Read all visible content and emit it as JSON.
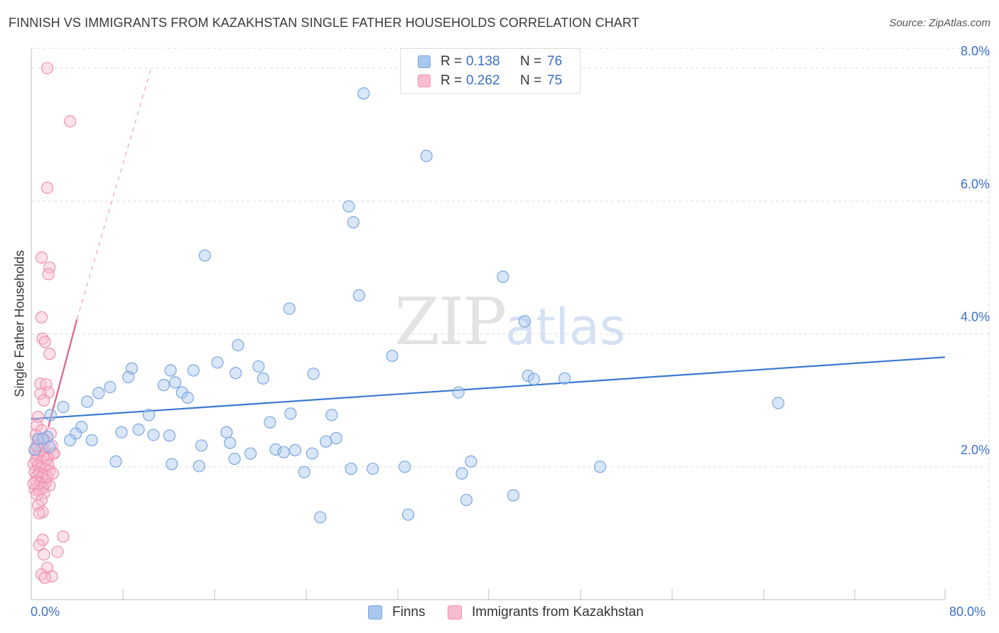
{
  "title": "FINNISH VS IMMIGRANTS FROM KAZAKHSTAN SINGLE FATHER HOUSEHOLDS CORRELATION CHART",
  "source": "Source: ZipAtlas.com",
  "watermark": {
    "zip": "ZIP",
    "atlas": "atlas"
  },
  "colors": {
    "finns_fill": "#a9c7ef",
    "finns_stroke": "#7aa6e0",
    "finns_line": "#3b78d0",
    "kaz_fill": "#f7bcd0",
    "kaz_stroke": "#ee8fb0",
    "kaz_line": "#e0608e",
    "axis_text": "#3b6fc9",
    "grid": "#dcdcdc"
  },
  "legend": {
    "rows": [
      {
        "r_label": "R =",
        "r_value": "0.138",
        "n_label": "N =",
        "n_value": "76"
      },
      {
        "r_label": "R =",
        "r_value": "0.262",
        "n_label": "N =",
        "n_value": "75"
      }
    ]
  },
  "bottom_legend": [
    "Finns",
    "Immigrants from Kazakhstan"
  ],
  "chart_data": {
    "type": "scatter",
    "title": "FINNISH VS IMMIGRANTS FROM KAZAKHSTAN SINGLE FATHER HOUSEHOLDS CORRELATION CHART",
    "xlabel": "",
    "ylabel": "Single Father Households",
    "xlim": [
      0,
      80
    ],
    "ylim": [
      0,
      8.3
    ],
    "x_tick_labels": [
      "0.0%",
      "80.0%"
    ],
    "y_ticks": [
      2.0,
      4.0,
      6.0,
      8.0
    ],
    "y_tick_labels": [
      "2.0%",
      "4.0%",
      "6.0%",
      "8.0%"
    ],
    "grid": true,
    "series": [
      {
        "name": "Finns",
        "R": 0.138,
        "N": 76,
        "trend": {
          "x": [
            0,
            80
          ],
          "y": [
            2.72,
            3.65
          ]
        },
        "points": [
          [
            29.1,
            7.62
          ],
          [
            34.6,
            6.68
          ],
          [
            27.8,
            5.92
          ],
          [
            28.2,
            5.68
          ],
          [
            15.2,
            5.18
          ],
          [
            41.3,
            4.86
          ],
          [
            28.7,
            4.58
          ],
          [
            22.6,
            4.38
          ],
          [
            43.2,
            4.19
          ],
          [
            18.1,
            3.83
          ],
          [
            31.6,
            3.67
          ],
          [
            16.3,
            3.57
          ],
          [
            19.9,
            3.51
          ],
          [
            8.8,
            3.48
          ],
          [
            12.2,
            3.45
          ],
          [
            14.2,
            3.45
          ],
          [
            17.9,
            3.41
          ],
          [
            24.7,
            3.4
          ],
          [
            8.5,
            3.35
          ],
          [
            20.3,
            3.33
          ],
          [
            43.5,
            3.37
          ],
          [
            44.0,
            3.32
          ],
          [
            46.7,
            3.33
          ],
          [
            11.6,
            3.23
          ],
          [
            6.9,
            3.2
          ],
          [
            12.6,
            3.27
          ],
          [
            13.2,
            3.12
          ],
          [
            5.9,
            3.11
          ],
          [
            13.7,
            3.04
          ],
          [
            37.4,
            3.12
          ],
          [
            4.9,
            2.98
          ],
          [
            65.4,
            2.96
          ],
          [
            2.8,
            2.9
          ],
          [
            1.7,
            2.78
          ],
          [
            10.3,
            2.78
          ],
          [
            22.7,
            2.8
          ],
          [
            26.3,
            2.78
          ],
          [
            20.9,
            2.67
          ],
          [
            4.4,
            2.6
          ],
          [
            9.4,
            2.56
          ],
          [
            3.9,
            2.5
          ],
          [
            7.9,
            2.52
          ],
          [
            10.7,
            2.48
          ],
          [
            17.1,
            2.52
          ],
          [
            12.1,
            2.47
          ],
          [
            1.4,
            2.45
          ],
          [
            3.4,
            2.4
          ],
          [
            5.3,
            2.4
          ],
          [
            17.4,
            2.36
          ],
          [
            26.7,
            2.43
          ],
          [
            14.9,
            2.32
          ],
          [
            25.8,
            2.38
          ],
          [
            21.4,
            2.26
          ],
          [
            22.1,
            2.22
          ],
          [
            24.6,
            2.2
          ],
          [
            19.2,
            2.2
          ],
          [
            23.1,
            2.25
          ],
          [
            17.8,
            2.12
          ],
          [
            7.4,
            2.08
          ],
          [
            12.3,
            2.04
          ],
          [
            14.7,
            2.01
          ],
          [
            38.5,
            2.08
          ],
          [
            49.8,
            2.0
          ],
          [
            32.7,
            2.0
          ],
          [
            28.0,
            1.97
          ],
          [
            29.9,
            1.97
          ],
          [
            23.9,
            1.92
          ],
          [
            37.7,
            1.9
          ],
          [
            38.1,
            1.5
          ],
          [
            42.2,
            1.57
          ],
          [
            25.3,
            1.24
          ],
          [
            33.0,
            1.28
          ],
          [
            1.6,
            2.3
          ],
          [
            0.6,
            2.42
          ],
          [
            0.3,
            2.26
          ],
          [
            1.0,
            2.42
          ]
        ]
      },
      {
        "name": "Immigrants from Kazakhstan",
        "R": 0.262,
        "N": 75,
        "trend": {
          "x": [
            1.5,
            4.0
          ],
          "y": [
            2.6,
            4.22
          ],
          "dashed_extension": {
            "x": [
              4.0,
              10.5
            ],
            "y": [
              4.22,
              8.0
            ]
          }
        },
        "points": [
          [
            1.4,
            8.0
          ],
          [
            3.4,
            7.2
          ],
          [
            1.4,
            6.2
          ],
          [
            0.9,
            5.15
          ],
          [
            1.6,
            5.0
          ],
          [
            1.5,
            4.9
          ],
          [
            0.9,
            4.25
          ],
          [
            1.0,
            3.93
          ],
          [
            1.2,
            3.88
          ],
          [
            1.6,
            3.7
          ],
          [
            0.8,
            3.25
          ],
          [
            1.3,
            3.24
          ],
          [
            1.5,
            3.12
          ],
          [
            0.8,
            3.1
          ],
          [
            1.1,
            3.0
          ],
          [
            0.6,
            2.75
          ],
          [
            0.5,
            2.62
          ],
          [
            0.9,
            2.55
          ],
          [
            0.4,
            2.48
          ],
          [
            1.7,
            2.5
          ],
          [
            0.7,
            2.42
          ],
          [
            1.2,
            2.4
          ],
          [
            0.5,
            2.3
          ],
          [
            1.0,
            2.28
          ],
          [
            0.3,
            2.25
          ],
          [
            0.7,
            2.22
          ],
          [
            1.3,
            2.2
          ],
          [
            1.9,
            2.2
          ],
          [
            0.6,
            2.16
          ],
          [
            1.1,
            2.15
          ],
          [
            1.5,
            2.14
          ],
          [
            0.4,
            2.1
          ],
          [
            0.9,
            2.08
          ],
          [
            1.4,
            2.12
          ],
          [
            0.2,
            2.04
          ],
          [
            0.6,
            2.02
          ],
          [
            1.5,
            2.02
          ],
          [
            0.8,
            1.98
          ],
          [
            1.2,
            1.96
          ],
          [
            1.6,
            1.94
          ],
          [
            0.3,
            1.92
          ],
          [
            0.7,
            1.9
          ],
          [
            1.1,
            1.88
          ],
          [
            0.5,
            1.86
          ],
          [
            0.9,
            1.84
          ],
          [
            1.3,
            1.8
          ],
          [
            0.4,
            1.78
          ],
          [
            0.8,
            1.76
          ],
          [
            1.2,
            1.74
          ],
          [
            1.6,
            1.72
          ],
          [
            0.6,
            1.7
          ],
          [
            1.0,
            1.68
          ],
          [
            0.3,
            1.66
          ],
          [
            0.7,
            1.64
          ],
          [
            1.1,
            1.6
          ],
          [
            0.5,
            1.58
          ],
          [
            0.9,
            1.5
          ],
          [
            0.6,
            1.42
          ],
          [
            1.0,
            1.32
          ],
          [
            0.7,
            1.3
          ],
          [
            2.8,
            0.95
          ],
          [
            1.0,
            0.9
          ],
          [
            0.7,
            0.82
          ],
          [
            2.3,
            0.72
          ],
          [
            1.1,
            0.68
          ],
          [
            1.4,
            0.48
          ],
          [
            0.9,
            0.38
          ],
          [
            1.8,
            0.35
          ],
          [
            1.2,
            0.33
          ],
          [
            0.5,
            2.32
          ],
          [
            1.8,
            2.32
          ],
          [
            2.0,
            2.2
          ],
          [
            1.4,
            1.85
          ],
          [
            0.2,
            1.75
          ],
          [
            1.9,
            1.9
          ]
        ]
      }
    ]
  }
}
